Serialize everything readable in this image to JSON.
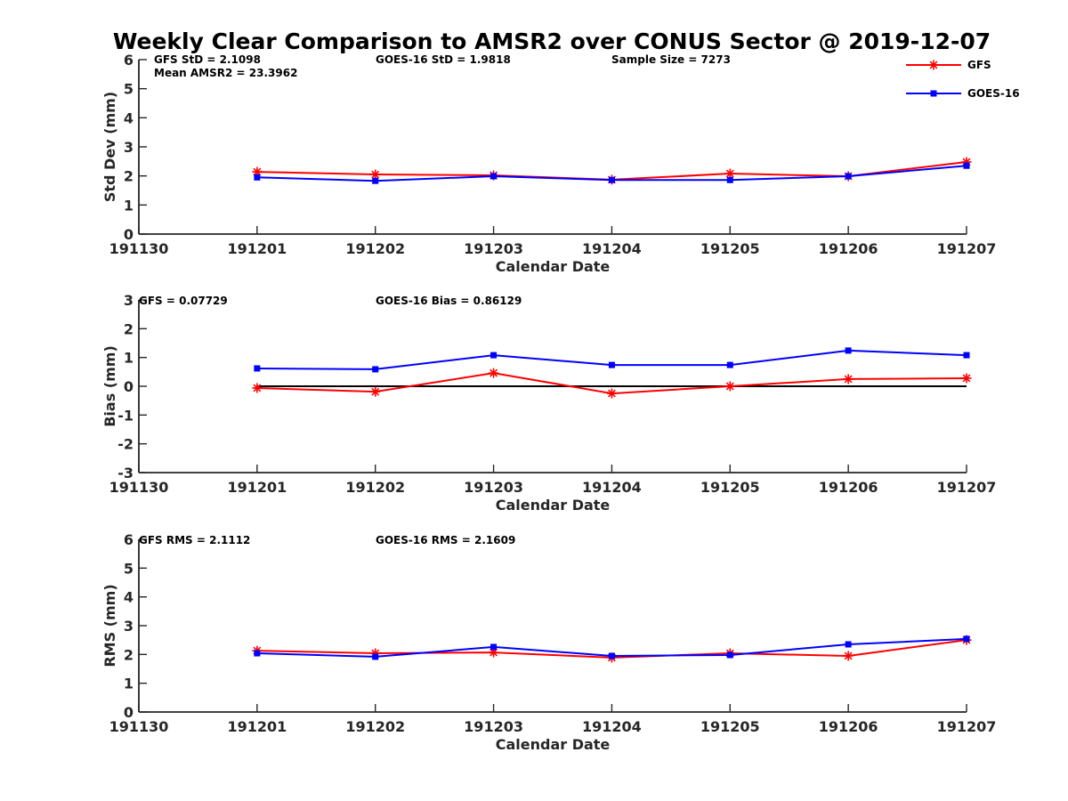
{
  "title": "Weekly Clear Comparison to AMSR2 over CONUS Sector @ 2019-12-07",
  "legend": {
    "placement": "top-right",
    "entries": [
      {
        "name": "GFS",
        "color": "#ff0000",
        "marker": "asterisk"
      },
      {
        "name": "GOES-16",
        "color": "#0000ff",
        "marker": "square"
      }
    ]
  },
  "chart_data": [
    {
      "type": "line",
      "title": "Weekly Clear Comparison to AMSR2 over CONUS Sector @ 2019-12-07",
      "xlabel": "Calendar Date",
      "ylabel": "Std Dev (mm)",
      "x_ticks": [
        "191130",
        "191201",
        "191202",
        "191203",
        "191204",
        "191205",
        "191206",
        "191207"
      ],
      "categories": [
        "191201",
        "191202",
        "191203",
        "191204",
        "191205",
        "191206",
        "191207"
      ],
      "ylim": [
        0,
        6
      ],
      "y_ticks": [
        0,
        1,
        2,
        3,
        4,
        5,
        6
      ],
      "grid": false,
      "annotations": [
        "GFS StD = 2.1098",
        "Mean AMSR2 = 23.3962",
        "GOES-16 StD = 1.9818",
        "Sample Size = 7273"
      ],
      "series": [
        {
          "name": "GFS",
          "color": "#ff0000",
          "marker": "asterisk",
          "values": [
            2.14,
            2.05,
            2.02,
            1.87,
            2.08,
            1.99,
            2.48
          ]
        },
        {
          "name": "GOES-16",
          "color": "#0000ff",
          "marker": "square",
          "values": [
            1.95,
            1.83,
            1.99,
            1.86,
            1.86,
            1.99,
            2.35
          ]
        }
      ]
    },
    {
      "type": "line",
      "xlabel": "Calendar Date",
      "ylabel": "Bias (mm)",
      "x_ticks": [
        "191130",
        "191201",
        "191202",
        "191203",
        "191204",
        "191205",
        "191206",
        "191207"
      ],
      "categories": [
        "191201",
        "191202",
        "191203",
        "191204",
        "191205",
        "191206",
        "191207"
      ],
      "ylim": [
        -3,
        3
      ],
      "y_ticks": [
        -3,
        -2,
        -1,
        0,
        1,
        2,
        3
      ],
      "grid": false,
      "zero_line": true,
      "annotations": [
        "GFS = 0.07729",
        "GOES-16 Bias  = 0.86129"
      ],
      "series": [
        {
          "name": "GFS",
          "color": "#ff0000",
          "marker": "asterisk",
          "values": [
            -0.06,
            -0.19,
            0.46,
            -0.25,
            0.0,
            0.25,
            0.28
          ]
        },
        {
          "name": "GOES-16",
          "color": "#0000ff",
          "marker": "square",
          "values": [
            0.62,
            0.59,
            1.08,
            0.74,
            0.74,
            1.24,
            1.08
          ]
        }
      ]
    },
    {
      "type": "line",
      "xlabel": "Calendar Date",
      "ylabel": "RMS (mm)",
      "x_ticks": [
        "191130",
        "191201",
        "191202",
        "191203",
        "191204",
        "191205",
        "191206",
        "191207"
      ],
      "categories": [
        "191201",
        "191202",
        "191203",
        "191204",
        "191205",
        "191206",
        "191207"
      ],
      "ylim": [
        0,
        6
      ],
      "y_ticks": [
        0,
        1,
        2,
        3,
        4,
        5,
        6
      ],
      "grid": false,
      "annotations": [
        "GFS RMS = 2.1112",
        "GOES-16 RMS = 2.1609"
      ],
      "series": [
        {
          "name": "GFS",
          "color": "#ff0000",
          "marker": "asterisk",
          "values": [
            2.13,
            2.04,
            2.07,
            1.89,
            2.04,
            1.95,
            2.5
          ]
        },
        {
          "name": "GOES-16",
          "color": "#0000ff",
          "marker": "square",
          "values": [
            2.04,
            1.92,
            2.26,
            1.95,
            1.98,
            2.35,
            2.54
          ]
        }
      ]
    }
  ]
}
